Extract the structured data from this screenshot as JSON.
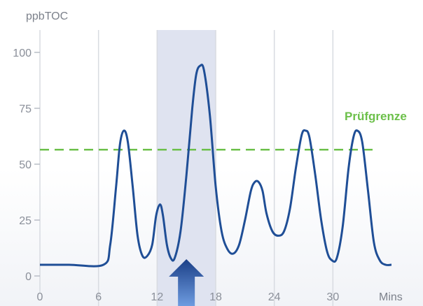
{
  "chart_data": {
    "type": "line",
    "ylabel": "ppbTOC",
    "xlabel": "Mins",
    "xlim": [
      0,
      36
    ],
    "ylim": [
      0,
      100
    ],
    "x_ticks": [
      0,
      6,
      12,
      18,
      24,
      30
    ],
    "y_ticks": [
      0,
      25,
      50,
      75,
      100
    ],
    "grid": "vertical lines at x ticks",
    "series": [
      {
        "color": "#1f4e96",
        "points": [
          [
            0,
            5
          ],
          [
            3,
            5
          ],
          [
            6.5,
            5
          ],
          [
            7.2,
            14
          ],
          [
            7.8,
            40
          ],
          [
            8.2,
            59
          ],
          [
            8.6,
            65
          ],
          [
            9.0,
            60
          ],
          [
            9.5,
            40
          ],
          [
            10.0,
            18
          ],
          [
            10.5,
            9
          ],
          [
            11.0,
            9
          ],
          [
            11.5,
            14
          ],
          [
            11.9,
            27
          ],
          [
            12.3,
            32
          ],
          [
            12.6,
            27
          ],
          [
            13.0,
            14
          ],
          [
            13.4,
            8
          ],
          [
            13.8,
            8
          ],
          [
            14.4,
            20
          ],
          [
            15.0,
            45
          ],
          [
            15.6,
            75
          ],
          [
            16.0,
            90
          ],
          [
            16.4,
            94
          ],
          [
            16.8,
            92
          ],
          [
            17.4,
            72
          ],
          [
            18.0,
            40
          ],
          [
            18.6,
            20
          ],
          [
            19.2,
            12
          ],
          [
            19.8,
            10
          ],
          [
            20.4,
            14
          ],
          [
            21.0,
            25
          ],
          [
            21.6,
            38
          ],
          [
            22.0,
            42
          ],
          [
            22.4,
            42
          ],
          [
            22.8,
            38
          ],
          [
            23.2,
            28
          ],
          [
            23.8,
            20
          ],
          [
            24.4,
            18
          ],
          [
            25.0,
            20
          ],
          [
            25.6,
            30
          ],
          [
            26.2,
            48
          ],
          [
            26.8,
            63
          ],
          [
            27.2,
            65
          ],
          [
            27.6,
            62
          ],
          [
            28.2,
            45
          ],
          [
            28.8,
            25
          ],
          [
            29.4,
            11
          ],
          [
            29.9,
            7
          ],
          [
            30.4,
            8
          ],
          [
            31.0,
            22
          ],
          [
            31.6,
            48
          ],
          [
            32.1,
            62
          ],
          [
            32.5,
            65
          ],
          [
            33.0,
            60
          ],
          [
            33.6,
            38
          ],
          [
            34.2,
            15
          ],
          [
            34.8,
            7
          ],
          [
            35.4,
            5
          ],
          [
            36,
            5
          ]
        ]
      }
    ],
    "highlight_band": {
      "x_start": 12,
      "x_end": 18,
      "color": "#dfe3f0"
    },
    "reference_line": {
      "y": 56.5,
      "label": "Prüfgrenze",
      "color": "#6cc04a",
      "x_end": 34.6
    },
    "arrow": {
      "x": 15,
      "direction": "up",
      "color": "#1f4e96"
    }
  }
}
